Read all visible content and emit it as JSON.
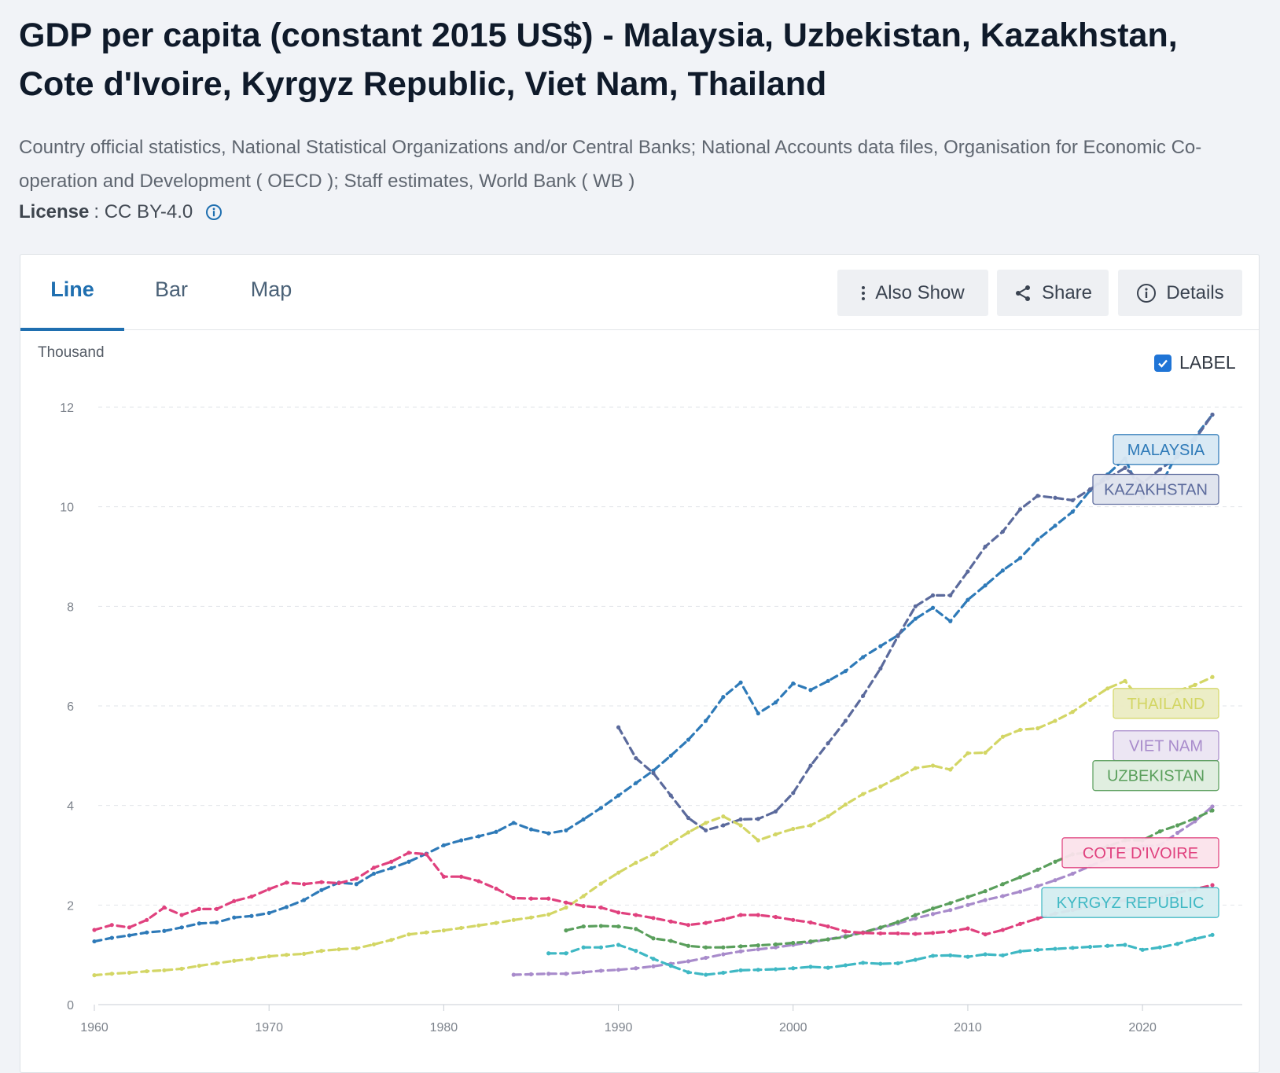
{
  "title": "GDP per capita (constant 2015 US$) - Malaysia, Uzbekistan, Kazakhstan, Cote d'Ivoire, Kyrgyz Republic, Viet Nam, Thailand",
  "source": "Country official statistics, National Statistical Organizations and/or Central Banks; National Accounts data files, Organisation for Economic Co-operation and Development ( OECD ); Staff estimates, World Bank ( WB )",
  "license": {
    "label": "License",
    "value": ": CC BY-4.0",
    "icon": "info-icon"
  },
  "tabs": [
    {
      "label": "Line",
      "active": true
    },
    {
      "label": "Bar",
      "active": false
    },
    {
      "label": "Map",
      "active": false
    }
  ],
  "buttons": {
    "also_show": {
      "label": "Also Show",
      "icon": "more-vertical-icon"
    },
    "share": {
      "label": "Share",
      "icon": "share-icon"
    },
    "details": {
      "label": "Details",
      "icon": "info-icon"
    }
  },
  "label_toggle": {
    "label": "LABEL",
    "checked": true
  },
  "chart_data": {
    "type": "line",
    "title": "GDP per capita (constant 2015 US$)",
    "unit_label": "Thousand",
    "xlabel": "",
    "ylabel": "Thousand",
    "xlim": [
      1960,
      2024
    ],
    "ylim": [
      0,
      12
    ],
    "xticks": [
      1960,
      1970,
      1980,
      1990,
      2000,
      2010,
      2020
    ],
    "yticks": [
      0,
      2,
      4,
      6,
      8,
      10,
      12
    ],
    "grid": true,
    "series": [
      {
        "name": "MALAYSIA",
        "color": "#2e7ab8",
        "label_bg": "#d8e8f4",
        "label_year": 2019,
        "label_value": 11.15,
        "x": [
          1960,
          1961,
          1962,
          1963,
          1964,
          1965,
          1966,
          1967,
          1968,
          1969,
          1970,
          1971,
          1972,
          1973,
          1974,
          1975,
          1976,
          1977,
          1978,
          1979,
          1980,
          1981,
          1982,
          1983,
          1984,
          1985,
          1986,
          1987,
          1988,
          1989,
          1990,
          1991,
          1992,
          1993,
          1994,
          1995,
          1996,
          1997,
          1998,
          1999,
          2000,
          2001,
          2002,
          2003,
          2004,
          2005,
          2006,
          2007,
          2008,
          2009,
          2010,
          2011,
          2012,
          2013,
          2014,
          2015,
          2016,
          2017,
          2018,
          2019,
          2020,
          2021,
          2022,
          2023,
          2024
        ],
        "values": [
          1.27,
          1.34,
          1.39,
          1.45,
          1.48,
          1.55,
          1.63,
          1.65,
          1.75,
          1.78,
          1.84,
          1.96,
          2.1,
          2.3,
          2.45,
          2.42,
          2.63,
          2.74,
          2.87,
          3.03,
          3.2,
          3.3,
          3.38,
          3.47,
          3.65,
          3.52,
          3.44,
          3.5,
          3.72,
          3.95,
          4.2,
          4.45,
          4.7,
          5.0,
          5.32,
          5.7,
          6.18,
          6.47,
          5.85,
          6.07,
          6.45,
          6.32,
          6.5,
          6.7,
          6.98,
          7.2,
          7.42,
          7.75,
          7.97,
          7.7,
          8.13,
          8.42,
          8.72,
          8.97,
          9.34,
          9.62,
          9.9,
          10.33,
          10.65,
          10.97,
          10.18,
          10.4,
          11.08,
          11.4,
          11.85
        ]
      },
      {
        "name": "KAZAKHSTAN",
        "color": "#5b6a9c",
        "label_bg": "#dfe3ee",
        "label_year": 2019,
        "label_value": 10.35,
        "x": [
          1990,
          1991,
          1992,
          1993,
          1994,
          1995,
          1996,
          1997,
          1998,
          1999,
          2000,
          2001,
          2002,
          2003,
          2004,
          2005,
          2006,
          2007,
          2008,
          2009,
          2010,
          2011,
          2012,
          2013,
          2014,
          2015,
          2016,
          2017,
          2018,
          2019,
          2020,
          2021,
          2022,
          2023,
          2024
        ],
        "values": [
          5.57,
          4.95,
          4.65,
          4.2,
          3.75,
          3.5,
          3.6,
          3.72,
          3.73,
          3.88,
          4.25,
          4.8,
          5.25,
          5.7,
          6.2,
          6.75,
          7.4,
          8.0,
          8.22,
          8.22,
          8.7,
          9.2,
          9.5,
          9.95,
          10.22,
          10.18,
          10.13,
          10.35,
          10.57,
          10.78,
          10.48,
          10.75,
          11.0,
          11.35,
          11.85
        ]
      },
      {
        "name": "THAILAND",
        "color": "#d3d665",
        "label_bg": "#ecedc4",
        "label_year": 2019,
        "label_value": 6.05,
        "x": [
          1960,
          1961,
          1962,
          1963,
          1964,
          1965,
          1966,
          1967,
          1968,
          1969,
          1970,
          1971,
          1972,
          1973,
          1974,
          1975,
          1976,
          1977,
          1978,
          1979,
          1980,
          1981,
          1982,
          1983,
          1984,
          1985,
          1986,
          1987,
          1988,
          1989,
          1990,
          1991,
          1992,
          1993,
          1994,
          1995,
          1996,
          1997,
          1998,
          1999,
          2000,
          2001,
          2002,
          2003,
          2004,
          2005,
          2006,
          2007,
          2008,
          2009,
          2010,
          2011,
          2012,
          2013,
          2014,
          2015,
          2016,
          2017,
          2018,
          2019,
          2020,
          2021,
          2022,
          2023,
          2024
        ],
        "values": [
          0.59,
          0.62,
          0.64,
          0.67,
          0.69,
          0.72,
          0.78,
          0.83,
          0.88,
          0.92,
          0.97,
          1.0,
          1.02,
          1.08,
          1.11,
          1.13,
          1.21,
          1.3,
          1.41,
          1.45,
          1.49,
          1.54,
          1.59,
          1.64,
          1.7,
          1.75,
          1.81,
          1.95,
          2.18,
          2.43,
          2.65,
          2.85,
          3.02,
          3.24,
          3.46,
          3.65,
          3.78,
          3.6,
          3.3,
          3.42,
          3.53,
          3.6,
          3.78,
          4.02,
          4.23,
          4.38,
          4.56,
          4.75,
          4.8,
          4.72,
          5.05,
          5.06,
          5.38,
          5.52,
          5.55,
          5.7,
          5.88,
          6.12,
          6.35,
          6.5,
          6.07,
          6.15,
          6.3,
          6.42,
          6.58
        ]
      },
      {
        "name": "VIET NAM",
        "color": "#a88bcb",
        "label_bg": "#ebe5f3",
        "label_year": 2019,
        "label_value": 5.2,
        "x": [
          1984,
          1985,
          1986,
          1987,
          1988,
          1989,
          1990,
          1991,
          1992,
          1993,
          1994,
          1995,
          1996,
          1997,
          1998,
          1999,
          2000,
          2001,
          2002,
          2003,
          2004,
          2005,
          2006,
          2007,
          2008,
          2009,
          2010,
          2011,
          2012,
          2013,
          2014,
          2015,
          2016,
          2017,
          2018,
          2019,
          2020,
          2021,
          2022,
          2023,
          2024
        ],
        "values": [
          0.6,
          0.61,
          0.62,
          0.62,
          0.65,
          0.68,
          0.7,
          0.73,
          0.77,
          0.82,
          0.87,
          0.94,
          1.01,
          1.07,
          1.11,
          1.15,
          1.2,
          1.25,
          1.31,
          1.38,
          1.45,
          1.54,
          1.63,
          1.73,
          1.82,
          1.9,
          2.0,
          2.1,
          2.18,
          2.27,
          2.38,
          2.5,
          2.63,
          2.78,
          2.93,
          3.1,
          3.18,
          3.2,
          3.45,
          3.68,
          3.98
        ]
      },
      {
        "name": "UZBEKISTAN",
        "color": "#5a9f5c",
        "label_bg": "#dfeedf",
        "label_year": 2019,
        "label_value": 4.6,
        "x": [
          1987,
          1988,
          1989,
          1990,
          1991,
          1992,
          1993,
          1994,
          1995,
          1996,
          1997,
          1998,
          1999,
          2000,
          2001,
          2002,
          2003,
          2004,
          2005,
          2006,
          2007,
          2008,
          2009,
          2010,
          2011,
          2012,
          2013,
          2014,
          2015,
          2016,
          2017,
          2018,
          2019,
          2020,
          2021,
          2022,
          2023,
          2024
        ],
        "values": [
          1.49,
          1.57,
          1.58,
          1.57,
          1.52,
          1.33,
          1.28,
          1.18,
          1.15,
          1.15,
          1.17,
          1.19,
          1.21,
          1.24,
          1.27,
          1.31,
          1.36,
          1.45,
          1.55,
          1.66,
          1.8,
          1.93,
          2.04,
          2.16,
          2.28,
          2.42,
          2.56,
          2.71,
          2.87,
          3.02,
          3.06,
          3.18,
          3.3,
          3.3,
          3.48,
          3.6,
          3.74,
          3.9
        ]
      },
      {
        "name": "COTE D'IVOIRE",
        "color": "#e0417e",
        "label_bg": "#fbe3ec",
        "label_year": 2019,
        "label_value": 3.05,
        "x": [
          1960,
          1961,
          1962,
          1963,
          1964,
          1965,
          1966,
          1967,
          1968,
          1969,
          1970,
          1971,
          1972,
          1973,
          1974,
          1975,
          1976,
          1977,
          1978,
          1979,
          1980,
          1981,
          1982,
          1983,
          1984,
          1985,
          1986,
          1987,
          1988,
          1989,
          1990,
          1991,
          1992,
          1993,
          1994,
          1995,
          1996,
          1997,
          1998,
          1999,
          2000,
          2001,
          2002,
          2003,
          2004,
          2005,
          2006,
          2007,
          2008,
          2009,
          2010,
          2011,
          2012,
          2013,
          2014,
          2015,
          2016,
          2017,
          2018,
          2019,
          2020,
          2021,
          2022,
          2023,
          2024
        ],
        "values": [
          1.5,
          1.6,
          1.55,
          1.7,
          1.95,
          1.8,
          1.92,
          1.92,
          2.08,
          2.17,
          2.32,
          2.45,
          2.42,
          2.46,
          2.44,
          2.53,
          2.75,
          2.87,
          3.05,
          3.02,
          2.57,
          2.57,
          2.48,
          2.33,
          2.14,
          2.13,
          2.13,
          2.05,
          1.98,
          1.95,
          1.85,
          1.8,
          1.74,
          1.67,
          1.6,
          1.64,
          1.71,
          1.8,
          1.8,
          1.76,
          1.7,
          1.65,
          1.57,
          1.47,
          1.44,
          1.43,
          1.43,
          1.42,
          1.44,
          1.47,
          1.53,
          1.41,
          1.5,
          1.62,
          1.73,
          1.83,
          1.9,
          1.97,
          2.03,
          2.1,
          2.08,
          2.15,
          2.25,
          2.32,
          2.4
        ]
      },
      {
        "name": "KYRGYZ REPUBLIC",
        "color": "#3fb8c4",
        "label_bg": "#d4eef1",
        "label_year": 2019,
        "label_value": 2.05,
        "x": [
          1986,
          1987,
          1988,
          1989,
          1990,
          1991,
          1992,
          1993,
          1994,
          1995,
          1996,
          1997,
          1998,
          1999,
          2000,
          2001,
          2002,
          2003,
          2004,
          2005,
          2006,
          2007,
          2008,
          2009,
          2010,
          2011,
          2012,
          2013,
          2014,
          2015,
          2016,
          2017,
          2018,
          2019,
          2020,
          2021,
          2022,
          2023,
          2024
        ],
        "values": [
          1.03,
          1.03,
          1.15,
          1.15,
          1.2,
          1.08,
          0.92,
          0.78,
          0.65,
          0.6,
          0.64,
          0.69,
          0.7,
          0.71,
          0.73,
          0.76,
          0.74,
          0.79,
          0.84,
          0.82,
          0.83,
          0.9,
          0.98,
          0.99,
          0.96,
          1.01,
          0.99,
          1.07,
          1.1,
          1.12,
          1.14,
          1.16,
          1.18,
          1.2,
          1.1,
          1.15,
          1.22,
          1.32,
          1.4
        ]
      }
    ]
  }
}
